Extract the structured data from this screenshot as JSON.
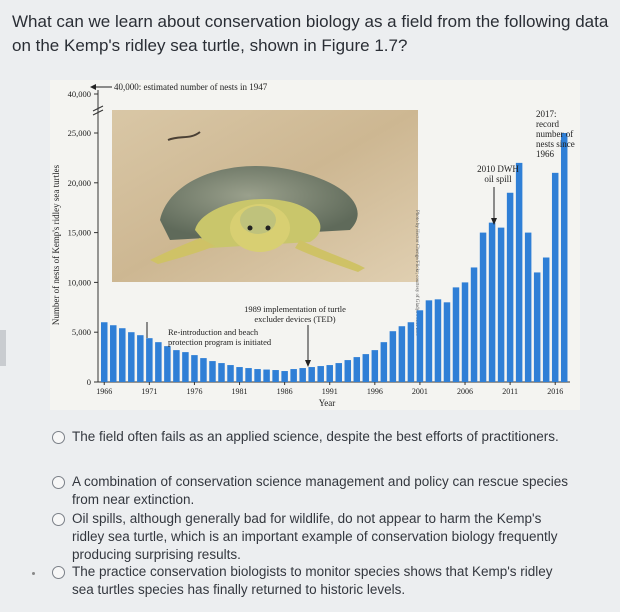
{
  "question": "What can we learn about conservation biology as a field from the following data on the Kemp's ridley sea turtle, shown in Figure 1.7?",
  "figure": {
    "ylabel": "Number of nests of Kemp's ridley sea turtles",
    "xlabel": "Year",
    "annotation_1947": "40,000: estimated number of nests in 1947",
    "annotation_1989": "1989 implementation of turtle excluder devices (TED)",
    "annotation_1989_l1": "1989 implementation of turtle",
    "annotation_1989_l2": "excluder devices (TED)",
    "annotation_reintro_l1": "Re-introduction and beach",
    "annotation_reintro_l2": "protection program is initiated",
    "annotation_dwh_l1": "2010 DWH",
    "annotation_dwh_l2": "oil spill",
    "annotation_2017_l1": "2017:",
    "annotation_2017_l2": "record",
    "annotation_2017_l3": "number of",
    "annotation_2017_l4": "nests since",
    "annotation_2017_l5": "1966",
    "photo_credit": "Photo by Hector Chenge/Flickr; courtesy of Gladys Porter Zoo",
    "bar_color": "#2f7fd6"
  },
  "chart_data": {
    "type": "bar",
    "title": "",
    "xlabel": "Year",
    "ylabel": "Number of nests of Kemp's ridley sea turtles",
    "y_ticks": [
      0,
      5000,
      10000,
      15000,
      20000,
      25000,
      40000
    ],
    "y_tick_labels": [
      "0",
      "5,000",
      "10,000",
      "15,000",
      "20,000",
      "25,000",
      "40,000"
    ],
    "x_ticks": [
      1966,
      1971,
      1976,
      1981,
      1986,
      1991,
      1996,
      2001,
      2006,
      2011,
      2016
    ],
    "axis_break": [
      27000,
      38000
    ],
    "categories": [
      1966,
      1967,
      1968,
      1969,
      1970,
      1971,
      1972,
      1973,
      1974,
      1975,
      1976,
      1977,
      1978,
      1979,
      1980,
      1981,
      1982,
      1983,
      1984,
      1985,
      1986,
      1987,
      1988,
      1989,
      1990,
      1991,
      1992,
      1993,
      1994,
      1995,
      1996,
      1997,
      1998,
      1999,
      2000,
      2001,
      2002,
      2003,
      2004,
      2005,
      2006,
      2007,
      2008,
      2009,
      2010,
      2011,
      2012,
      2013,
      2014,
      2015,
      2016,
      2017
    ],
    "values": [
      6000,
      5700,
      5400,
      5000,
      4700,
      4400,
      4000,
      3600,
      3200,
      3000,
      2700,
      2400,
      2100,
      1900,
      1700,
      1500,
      1400,
      1300,
      1250,
      1200,
      1100,
      1300,
      1400,
      1500,
      1600,
      1700,
      1900,
      2200,
      2500,
      2800,
      3200,
      4000,
      5100,
      5600,
      6000,
      7200,
      8200,
      8300,
      8000,
      9500,
      10000,
      11500,
      15000,
      16000,
      15500,
      19000,
      22000,
      15000,
      11000,
      12500,
      21000,
      25000
    ],
    "grid": false
  },
  "options": [
    "The field often fails as an applied science, despite the best efforts of practitioners.",
    "A combination of conservation science management and policy can rescue species from near extinction.",
    "Oil spills, although generally bad for wildlife, do not appear to harm the Kemp's ridley sea turtle, which is an important example of conservation biology frequently producing surprising results.",
    "The practice conservation biologists to monitor species shows that Kemp's ridley sea turtles species has finally returned to historic levels."
  ]
}
